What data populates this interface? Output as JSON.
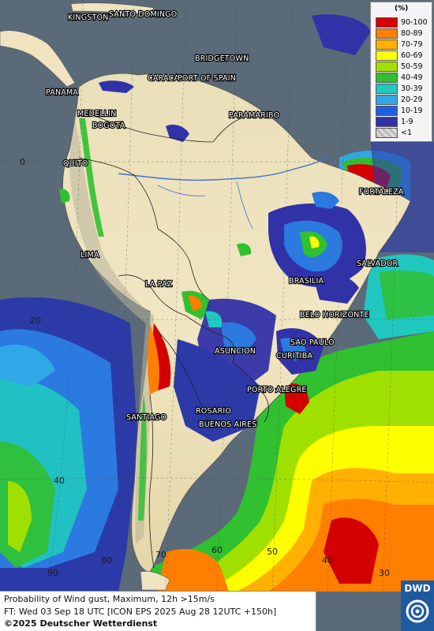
{
  "legend": {
    "unit": "(%)",
    "items": [
      {
        "label": "90-100",
        "color": "#d40000"
      },
      {
        "label": "80-89",
        "color": "#ff7f00"
      },
      {
        "label": "70-79",
        "color": "#ffb000"
      },
      {
        "label": "60-69",
        "color": "#ffff00"
      },
      {
        "label": "50-59",
        "color": "#a0e000"
      },
      {
        "label": "40-49",
        "color": "#30c030"
      },
      {
        "label": "30-39",
        "color": "#20c8c0"
      },
      {
        "label": "20-29",
        "color": "#30a8e8"
      },
      {
        "label": "10-19",
        "color": "#2060e0"
      },
      {
        "label": "1-9",
        "color": "#3232a8"
      },
      {
        "label": "<1",
        "color": "#c8c8c8"
      }
    ]
  },
  "cities": {
    "kingston": "KINGSTON",
    "santo_domingo": "SANTO DOMINGO",
    "bridgetown": "BRIDGETOWN",
    "caracas": "CARACAS",
    "port_of_spain": "PORT OF SPAIN",
    "panama": "PANAMA",
    "paramaribo": "PARAMARIBO",
    "medellin": "MEDELLIN",
    "bogota": "BOGOTA",
    "quito": "QUITO",
    "fortaleza": "FORTALEZA",
    "lima": "LIMA",
    "salvador": "SALVADOR",
    "brasilia": "BRASILIA",
    "la_paz": "LA PAZ",
    "belo_horizonte": "BELO HORIZONTE",
    "sao_paulo": "SAO PAULO",
    "asuncion": "ASUNCION",
    "curitiba": "CURITIBA",
    "porto_alegre": "PORTO ALEGRE",
    "rosario": "ROSARIO",
    "santiago": "SANTIAGO",
    "buenos_aires": "BUENOS AIRES"
  },
  "grid_labels": {
    "lat_0": "0",
    "lat_20": "20",
    "lat_40": "40",
    "lon_90": "90",
    "lon_80": "80",
    "lon_70": "70",
    "lon_60": "60",
    "lon_50": "50",
    "lon_40": "40",
    "lon_30": "30"
  },
  "info": {
    "line1": "Probability of Wind gust, Maximum, 12h >15m/s",
    "line2": "FT: Wed 03 Sep 18 UTC [ICON EPS 2025 Aug 28 12UTC +150h]",
    "line3": "©2025 Deutscher Wetterdienst"
  },
  "logo": {
    "text": "DWD"
  },
  "colors": {
    "ocean": "#5a6a78",
    "land": "#efe3c0",
    "border": "#222222"
  }
}
